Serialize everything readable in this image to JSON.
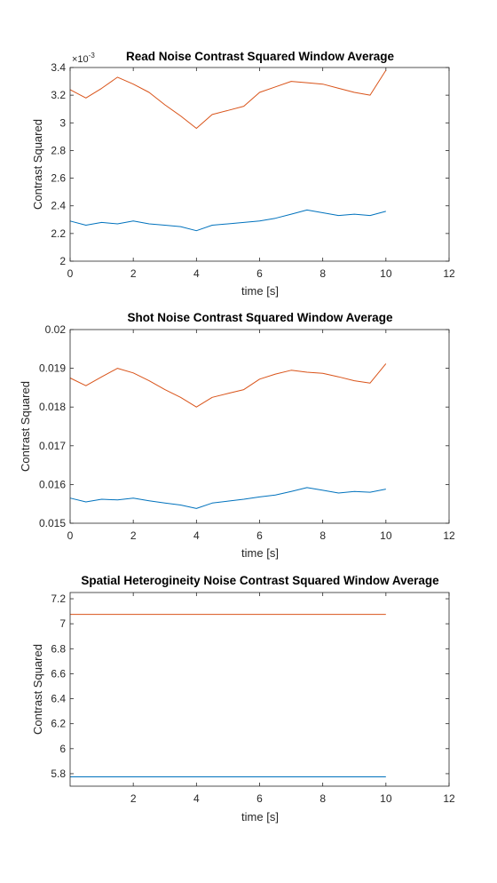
{
  "chart_data": [
    {
      "type": "line",
      "title": "Read Noise Contrast Squared Window Average",
      "xlabel": "time [s]",
      "ylabel": "Contrast Squared",
      "exponent_base": "×10",
      "exponent_power": "-3",
      "xlim": [
        0,
        12
      ],
      "ylim": [
        2,
        3.4
      ],
      "xticks": [
        0,
        2,
        4,
        6,
        8,
        10,
        12
      ],
      "xtick_labels": [
        "0",
        "2",
        "4",
        "6",
        "8",
        "10",
        "12"
      ],
      "yticks": [
        2,
        2.2,
        2.4,
        2.6,
        2.8,
        3,
        3.2,
        3.4
      ],
      "ytick_labels": [
        "2",
        "2.2",
        "2.4",
        "2.6",
        "2.8",
        "3",
        "3.2",
        "3.4"
      ],
      "colors": [
        "#0072BD",
        "#D95319"
      ],
      "x": [
        0,
        0.5,
        1,
        1.5,
        2,
        2.5,
        3,
        3.5,
        4,
        4.5,
        5,
        5.5,
        6,
        6.5,
        7,
        7.5,
        8,
        8.5,
        9,
        9.5,
        10
      ],
      "series": [
        {
          "values": [
            2.29,
            2.26,
            2.28,
            2.27,
            2.29,
            2.27,
            2.26,
            2.25,
            2.22,
            2.26,
            2.27,
            2.28,
            2.29,
            2.31,
            2.34,
            2.37,
            2.35,
            2.33,
            2.34,
            2.33,
            2.36
          ]
        },
        {
          "values": [
            3.24,
            3.18,
            3.25,
            3.33,
            3.28,
            3.22,
            3.13,
            3.05,
            2.96,
            3.06,
            3.09,
            3.12,
            3.22,
            3.26,
            3.3,
            3.29,
            3.28,
            3.25,
            3.22,
            3.2,
            3.38
          ]
        }
      ]
    },
    {
      "type": "line",
      "title": "Shot Noise Contrast Squared Window Average",
      "xlabel": "time [s]",
      "ylabel": "Contrast Squared",
      "xlim": [
        0,
        12
      ],
      "ylim": [
        0.015,
        0.02
      ],
      "xticks": [
        0,
        2,
        4,
        6,
        8,
        10,
        12
      ],
      "xtick_labels": [
        "0",
        "2",
        "4",
        "6",
        "8",
        "10",
        "12"
      ],
      "yticks": [
        0.015,
        0.016,
        0.017,
        0.018,
        0.019,
        0.02
      ],
      "ytick_labels": [
        "0.015",
        "0.016",
        "0.017",
        "0.018",
        "0.019",
        "0.02"
      ],
      "colors": [
        "#0072BD",
        "#D95319"
      ],
      "x": [
        0,
        0.5,
        1,
        1.5,
        2,
        2.5,
        3,
        3.5,
        4,
        4.5,
        5,
        5.5,
        6,
        6.5,
        7,
        7.5,
        8,
        8.5,
        9,
        9.5,
        10
      ],
      "series": [
        {
          "values": [
            0.01565,
            0.01555,
            0.01562,
            0.0156,
            0.01565,
            0.01558,
            0.01552,
            0.01547,
            0.01538,
            0.01552,
            0.01557,
            0.01562,
            0.01568,
            0.01573,
            0.01582,
            0.01592,
            0.01585,
            0.01578,
            0.01582,
            0.0158,
            0.01588
          ]
        },
        {
          "values": [
            0.01875,
            0.01855,
            0.01878,
            0.019,
            0.01888,
            0.01868,
            0.01845,
            0.01825,
            0.018,
            0.01825,
            0.01835,
            0.01845,
            0.01872,
            0.01885,
            0.01895,
            0.0189,
            0.01887,
            0.01878,
            0.01868,
            0.01862,
            0.01912
          ]
        }
      ]
    },
    {
      "type": "line",
      "title": "Spatial Heterogineity Noise Contrast Squared Window Average",
      "xlabel": "time [s]",
      "ylabel": "Contrast Squared",
      "xlim": [
        0,
        12
      ],
      "ylim": [
        5.7,
        7.25
      ],
      "xticks": [
        2,
        4,
        6,
        8,
        10,
        12
      ],
      "xtick_labels": [
        "2",
        "4",
        "6",
        "8",
        "10",
        "12"
      ],
      "yticks": [
        5.8,
        6,
        6.2,
        6.4,
        6.6,
        6.8,
        7,
        7.2
      ],
      "ytick_labels": [
        "5.8",
        "6",
        "6.2",
        "6.4",
        "6.6",
        "6.8",
        "7",
        "7.2"
      ],
      "colors": [
        "#0072BD",
        "#D95319"
      ],
      "x": [
        0,
        10
      ],
      "series": [
        {
          "values": [
            5.775,
            5.775
          ]
        },
        {
          "values": [
            7.075,
            7.075
          ]
        }
      ]
    }
  ]
}
